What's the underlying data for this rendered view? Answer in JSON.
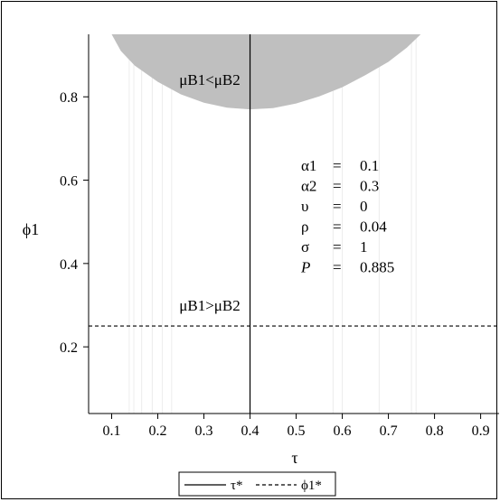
{
  "chart_data": {
    "type": "area",
    "xlabel": "τ",
    "ylabel": "ϕ1",
    "xlim": [
      0.05,
      0.94
    ],
    "ylim": [
      0.04,
      0.95
    ],
    "xticks": [
      0.1,
      0.2,
      0.3,
      0.4,
      0.5,
      0.6,
      0.7,
      0.8,
      0.9
    ],
    "xtick_labels": [
      "0.1",
      "0.2",
      "0.3",
      "0.4",
      "0.5",
      "0.6",
      "0.7",
      "0.8",
      "0.9"
    ],
    "yticks": [
      0.2,
      0.4,
      0.6,
      0.8
    ],
    "ytick_labels": [
      "0.2",
      "0.4",
      "0.6",
      "0.8"
    ],
    "region": {
      "color": "#bfbfbf",
      "boundary": [
        {
          "x": 0.1,
          "y": 0.95
        },
        {
          "x": 0.12,
          "y": 0.91
        },
        {
          "x": 0.15,
          "y": 0.875
        },
        {
          "x": 0.2,
          "y": 0.836
        },
        {
          "x": 0.25,
          "y": 0.806
        },
        {
          "x": 0.3,
          "y": 0.786
        },
        {
          "x": 0.35,
          "y": 0.774
        },
        {
          "x": 0.4,
          "y": 0.77
        },
        {
          "x": 0.45,
          "y": 0.773
        },
        {
          "x": 0.5,
          "y": 0.784
        },
        {
          "x": 0.55,
          "y": 0.801
        },
        {
          "x": 0.6,
          "y": 0.823
        },
        {
          "x": 0.65,
          "y": 0.852
        },
        {
          "x": 0.7,
          "y": 0.884
        },
        {
          "x": 0.74,
          "y": 0.918
        },
        {
          "x": 0.77,
          "y": 0.95
        }
      ]
    },
    "faint_vertical_lines_x": [
      0.138,
      0.148,
      0.165,
      0.188,
      0.21,
      0.23,
      0.58,
      0.6,
      0.68,
      0.75,
      0.76
    ],
    "vline": {
      "name": "τ*",
      "x": 0.4
    },
    "hline": {
      "name": "ϕ1*",
      "y": 0.25
    },
    "legend": {
      "position": "bottom",
      "entries": [
        "τ*",
        "ϕ1*"
      ]
    },
    "annotations": {
      "upper_region": "μB1<μB2",
      "lower_region": "μB1>μB2"
    },
    "parameters": [
      {
        "symbol": "α1",
        "eq": "=",
        "value": "0.1"
      },
      {
        "symbol": "α2",
        "eq": "=",
        "value": "0.3"
      },
      {
        "symbol": "υ",
        "eq": "=",
        "value": "0"
      },
      {
        "symbol": "ρ",
        "eq": "=",
        "value": "0.04"
      },
      {
        "symbol": "σ",
        "eq": "=",
        "value": "1"
      },
      {
        "symbol": "P",
        "eq": "=",
        "value": "0.885"
      }
    ]
  }
}
